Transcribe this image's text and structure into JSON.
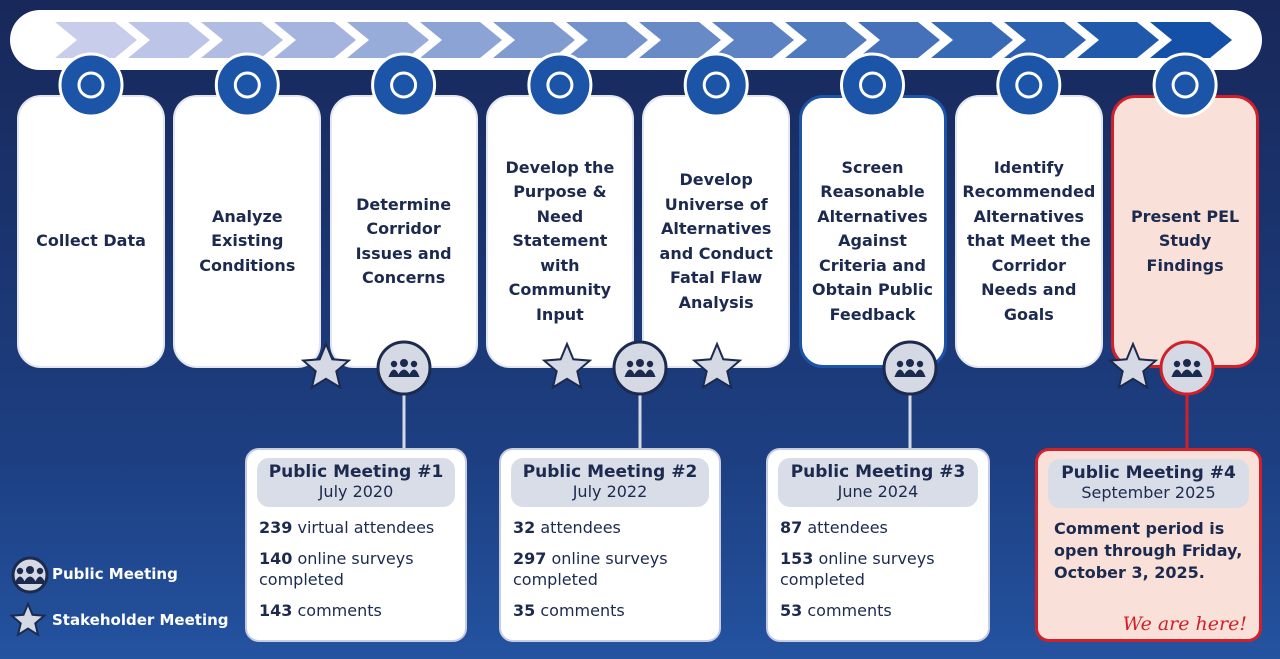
{
  "steps": [
    {
      "label": "Collect Data"
    },
    {
      "label": "Analyze Existing Conditions"
    },
    {
      "label": "Determine Corridor Issues and Concerns"
    },
    {
      "label": "Develop the Purpose & Need Statement with Community Input"
    },
    {
      "label": "Develop Universe of Alternatives and Conduct Fatal Flaw Analysis"
    },
    {
      "label": "Screen Reasonable Alternatives Against Criteria and Obtain Public Feedback"
    },
    {
      "label": "Identify Recommended Alternatives that Meet the Corridor Needs and Goals"
    },
    {
      "label": "Present PEL Study Findings"
    }
  ],
  "meetings": [
    {
      "title": "Public Meeting #1",
      "date": "July 2020",
      "stats": [
        {
          "number": 239,
          "text": "virtual attendees"
        },
        {
          "number": 140,
          "text": "online surveys completed"
        },
        {
          "number": 143,
          "text": "comments"
        }
      ]
    },
    {
      "title": "Public Meeting #2",
      "date": "July 2022",
      "stats": [
        {
          "number": 32,
          "text": "attendees"
        },
        {
          "number": 297,
          "text": "online surveys completed"
        },
        {
          "number": 35,
          "text": "comments"
        }
      ]
    },
    {
      "title": "Public Meeting #3",
      "date": "June 2024",
      "stats": [
        {
          "number": 87,
          "text": "attendees"
        },
        {
          "number": 153,
          "text": "online surveys completed"
        },
        {
          "number": 53,
          "text": "comments"
        }
      ]
    },
    {
      "title": "Public Meeting #4",
      "date": "September 2025",
      "message": "Comment period is open through Friday, October 3, 2025.",
      "note": "We are here!"
    }
  ],
  "legend": {
    "public": "Public Meeting",
    "stakeholder": "Stakeholder Meeting"
  }
}
